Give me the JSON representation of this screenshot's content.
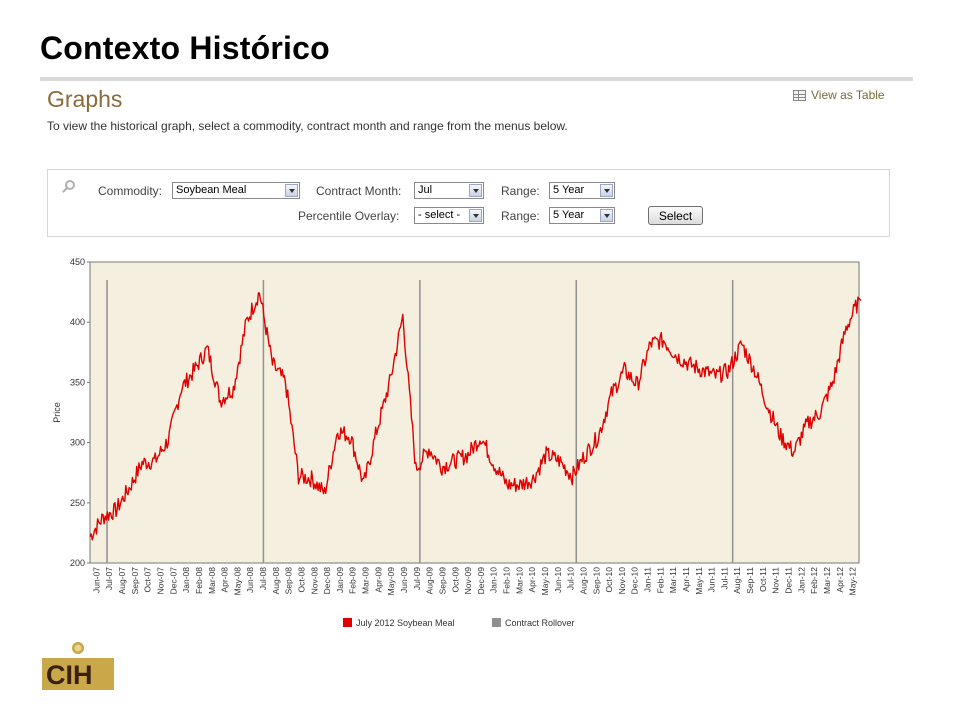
{
  "slide": {
    "title": "Contexto Histórico"
  },
  "section": {
    "heading": "Graphs",
    "intro": "To view the historical graph, select a commodity, contract month and range from the menus below.",
    "view_table_label": "View as Table"
  },
  "filters": {
    "commodity_label": "Commodity:",
    "commodity_value": "Soybean Meal",
    "contract_month_label": "Contract Month:",
    "contract_month_value": "Jul",
    "range_label": "Range:",
    "range_value": "5 Year",
    "percentile_label": "Percentile Overlay:",
    "percentile_value": "- select -",
    "range2_label": "Range:",
    "range2_value": "5 Year",
    "select_button": "Select"
  },
  "logo": {
    "text": "CIH"
  },
  "chart_data": {
    "type": "line",
    "ylabel": "Price",
    "ylim": [
      200,
      450
    ],
    "yticks": [
      200,
      250,
      300,
      350,
      400,
      450
    ],
    "x_range": [
      "2007-06",
      "2012-05"
    ],
    "categories": [
      "Jun-07",
      "Jul-07",
      "Aug-07",
      "Sep-07",
      "Oct-07",
      "Nov-07",
      "Dec-07",
      "Jan-08",
      "Feb-08",
      "Mar-08",
      "Apr-08",
      "May-08",
      "Jun-08",
      "Jul-08",
      "Aug-08",
      "Sep-08",
      "Oct-08",
      "Nov-08",
      "Dec-08",
      "Jan-09",
      "Feb-09",
      "Mar-09",
      "Apr-09",
      "May-09",
      "Jun-09",
      "Jul-09",
      "Aug-09",
      "Sep-09",
      "Oct-09",
      "Nov-09",
      "Dec-09",
      "Jan-10",
      "Feb-10",
      "Mar-10",
      "Apr-10",
      "May-10",
      "Jun-10",
      "Jul-10",
      "Aug-10",
      "Sep-10",
      "Oct-10",
      "Nov-10",
      "Dec-10",
      "Jan-11",
      "Feb-11",
      "Mar-11",
      "Apr-11",
      "May-11",
      "Jun-11",
      "Jul-11",
      "Aug-11",
      "Sep-11",
      "Oct-11",
      "Nov-11",
      "Dec-11",
      "Jan-12",
      "Feb-12",
      "Mar-12",
      "Apr-12",
      "May-12"
    ],
    "grid": false,
    "legend_position": "bottom",
    "rollover_dates": [
      "2007-07",
      "2008-07",
      "2009-07",
      "2010-07",
      "2011-07"
    ],
    "series": [
      {
        "name": "July 2012 Soybean Meal",
        "color": "#e00000",
        "points": [
          [
            "2007-06",
            222
          ],
          [
            "2007-07",
            238
          ],
          [
            "2007-08",
            244
          ],
          [
            "2007-09",
            262
          ],
          [
            "2007-10",
            283
          ],
          [
            "2007-11",
            285
          ],
          [
            "2007-12",
            302
          ],
          [
            "2008-01",
            345
          ],
          [
            "2008-02",
            360
          ],
          [
            "2008-03",
            378
          ],
          [
            "2008-04",
            335
          ],
          [
            "2008-05",
            345
          ],
          [
            "2008-06",
            400
          ],
          [
            "2008-07",
            425
          ],
          [
            "2008-08",
            365
          ],
          [
            "2008-09",
            350
          ],
          [
            "2008-10",
            272
          ],
          [
            "2008-11",
            270
          ],
          [
            "2008-12",
            258
          ],
          [
            "2009-01",
            310
          ],
          [
            "2009-02",
            305
          ],
          [
            "2009-03",
            265
          ],
          [
            "2009-04",
            310
          ],
          [
            "2009-05",
            350
          ],
          [
            "2009-06",
            405
          ],
          [
            "2009-07",
            278
          ],
          [
            "2009-08",
            295
          ],
          [
            "2009-09",
            280
          ],
          [
            "2009-10",
            285
          ],
          [
            "2009-11",
            290
          ],
          [
            "2009-12",
            305
          ],
          [
            "2010-01",
            282
          ],
          [
            "2010-02",
            265
          ],
          [
            "2010-03",
            265
          ],
          [
            "2010-04",
            270
          ],
          [
            "2010-05",
            290
          ],
          [
            "2010-06",
            285
          ],
          [
            "2010-07",
            272
          ],
          [
            "2010-08",
            290
          ],
          [
            "2010-09",
            305
          ],
          [
            "2010-10",
            340
          ],
          [
            "2010-11",
            360
          ],
          [
            "2010-12",
            348
          ],
          [
            "2011-01",
            382
          ],
          [
            "2011-02",
            385
          ],
          [
            "2011-03",
            372
          ],
          [
            "2011-04",
            365
          ],
          [
            "2011-05",
            360
          ],
          [
            "2011-06",
            355
          ],
          [
            "2011-07",
            360
          ],
          [
            "2011-08",
            382
          ],
          [
            "2011-09",
            360
          ],
          [
            "2011-10",
            330
          ],
          [
            "2011-11",
            305
          ],
          [
            "2011-12",
            292
          ],
          [
            "2012-01",
            315
          ],
          [
            "2012-02",
            325
          ],
          [
            "2012-03",
            350
          ],
          [
            "2012-04",
            395
          ],
          [
            "2012-05",
            418
          ]
        ]
      }
    ],
    "rollover_series": {
      "name": "Contract Rollover",
      "color": "#909090"
    }
  }
}
